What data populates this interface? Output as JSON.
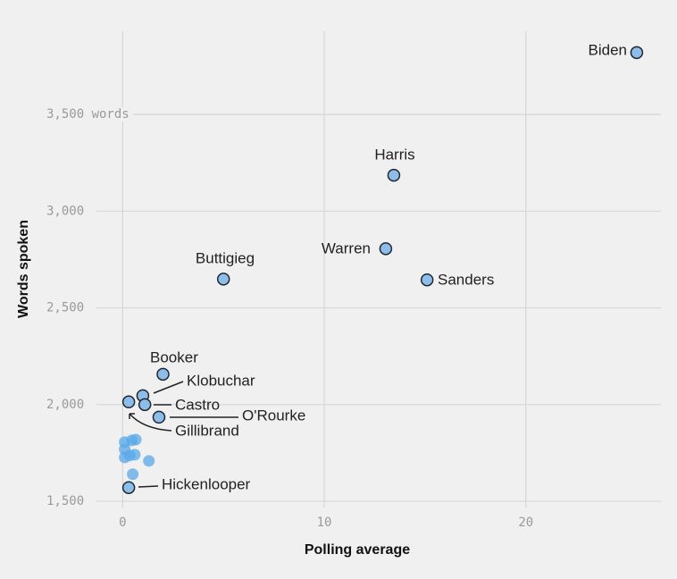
{
  "chart_data": {
    "type": "scatter",
    "xlabel": "Polling average",
    "ylabel": "Words spoken",
    "x": [
      25.5,
      13.45,
      13.05,
      15.1,
      5.0,
      2.0,
      1.0,
      1.1,
      1.8,
      0.3,
      0.3,
      0.1,
      0.1,
      0.1,
      0.35,
      0.6,
      0.45,
      0.65,
      0.5,
      1.3
    ],
    "values": [
      3820,
      3186,
      2806,
      2645,
      2649,
      2157,
      2046,
      2000,
      1935,
      2014,
      1571,
      1806,
      1769,
      1727,
      1737,
      1741,
      1815,
      1819,
      1640,
      1709
    ],
    "point_labels": [
      "Biden",
      "Harris",
      "Warren",
      "Sanders",
      "Buttigieg",
      "Booker",
      "Klobuchar",
      "Castro",
      "O'Rourke",
      "Gillibrand",
      "Hickenlooper",
      null,
      null,
      null,
      null,
      null,
      null,
      null,
      null,
      null
    ],
    "color": "#8fbde9",
    "edge_color": "#1e2833",
    "unlabeled_color": "#5aa8ea",
    "xlim": [
      -1.3,
      26.7
    ],
    "ylim": [
      1468,
      3930
    ],
    "xticks": [
      0,
      10,
      20
    ],
    "yticks": [
      {
        "value": 1500,
        "label": "1,500"
      },
      {
        "value": 2000,
        "label": "2,000"
      },
      {
        "value": 2500,
        "label": "2,500"
      },
      {
        "value": 3000,
        "label": "3,000"
      },
      {
        "value": 3500,
        "label": "3,500 words"
      }
    ],
    "grid": true
  }
}
